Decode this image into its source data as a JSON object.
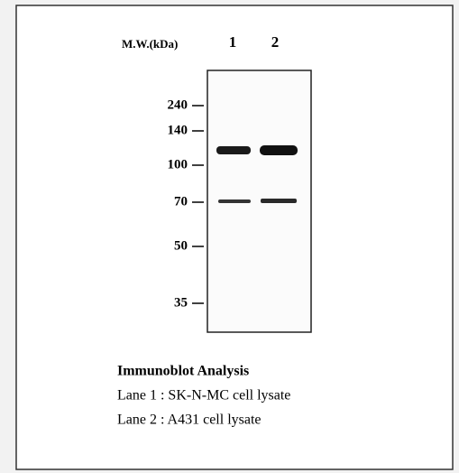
{
  "header": {
    "mw_label": "M.W.(kDa)",
    "lanes": [
      "1",
      "2"
    ]
  },
  "markers": [
    "240",
    "140",
    "100",
    "70",
    "50",
    "35"
  ],
  "legend": {
    "title": "Immunoblot Analysis",
    "lines": [
      "Lane 1 : SK-N-MC cell lysate",
      "Lane 2 : A431 cell lysate"
    ]
  }
}
